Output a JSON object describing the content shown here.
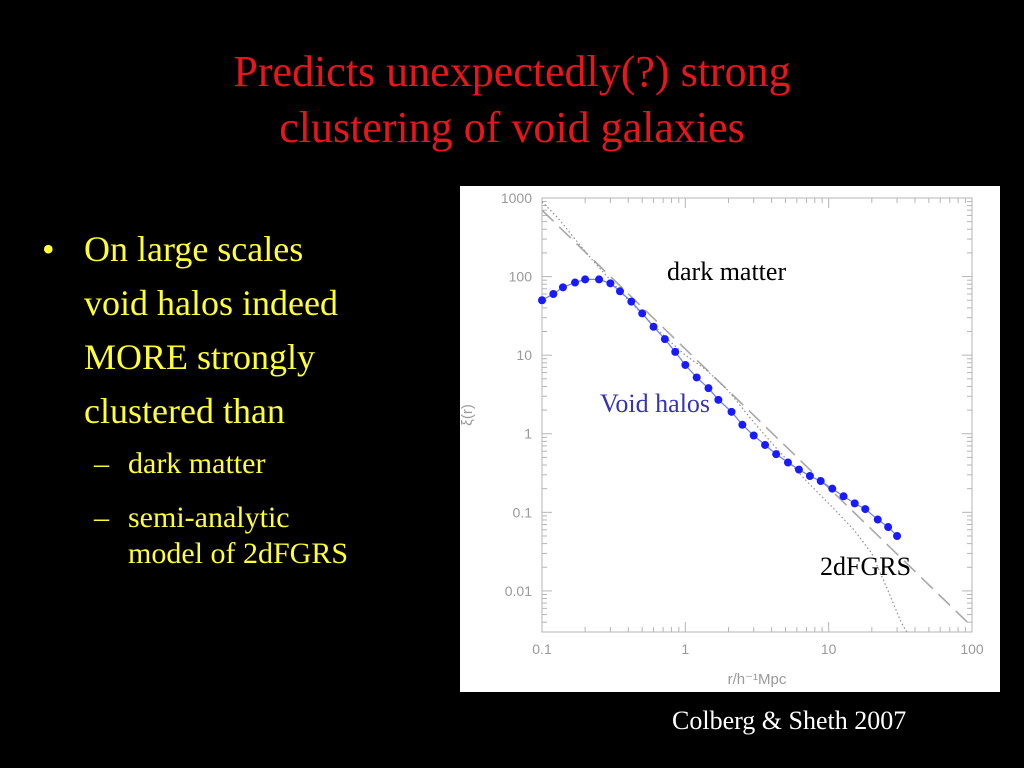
{
  "slide": {
    "title_line1": "Predicts unexpectedly(?) strong",
    "title_line2": "clustering of void galaxies",
    "bullet_symbol": "•",
    "bullet_main": [
      "On large scales",
      "void halos indeed",
      "MORE strongly",
      "clustered than"
    ],
    "sub_symbol": "–",
    "sub_1": "dark matter",
    "sub_2_lines": [
      "semi-analytic",
      "model of 2dFGRS"
    ],
    "credit": "Colberg & Sheth 2007",
    "colors": {
      "title": "#e8151b",
      "bullet": "#ffff33",
      "background": "#000000",
      "void_series": "#1a1aff"
    }
  },
  "chart_data": {
    "type": "line",
    "xscale": "log",
    "yscale": "log",
    "xlim": [
      0.1,
      100
    ],
    "ylim": [
      0.003,
      1000
    ],
    "xticks": [
      "0.1",
      "1",
      "10",
      "100"
    ],
    "xtick_values": [
      0.1,
      1,
      10,
      100
    ],
    "yticks": [
      "1000",
      "100",
      "10",
      "1",
      "0.1",
      "0.01"
    ],
    "ytick_values": [
      1000,
      100,
      10,
      1,
      0.1,
      0.01
    ],
    "xlabel": "r/h⁻¹Mpc",
    "ylabel": "ξ(r)",
    "grid": false,
    "annotations": [
      "dark matter",
      "Void halos",
      "2dFGRS"
    ],
    "series": [
      {
        "style": "dots-line",
        "color": "#1a1aff",
        "x": [
          0.1,
          0.12,
          0.14,
          0.17,
          0.2,
          0.25,
          0.3,
          0.35,
          0.42,
          0.5,
          0.6,
          0.72,
          0.85,
          1.0,
          1.2,
          1.45,
          1.7,
          2.1,
          2.5,
          3.0,
          3.6,
          4.3,
          5.2,
          6.2,
          7.4,
          8.8,
          10.6,
          12.7,
          15.2,
          18.0,
          22.0,
          26.0,
          30.0
        ],
        "y": [
          50,
          60,
          73,
          84,
          92,
          92,
          82,
          65,
          48,
          34,
          23,
          16,
          11,
          7.5,
          5.2,
          3.8,
          2.7,
          1.9,
          1.3,
          0.95,
          0.72,
          0.55,
          0.43,
          0.35,
          0.29,
          0.25,
          0.2,
          0.16,
          0.13,
          0.11,
          0.081,
          0.065,
          0.05
        ]
      },
      {
        "style": "dashed",
        "color": "#a8a8a8",
        "x": [
          0.1,
          100
        ],
        "y": [
          700,
          0.0035
        ]
      },
      {
        "style": "dotted",
        "color": "#909090",
        "x": [
          0.1,
          0.13,
          0.17,
          0.22,
          0.3,
          0.4,
          0.55,
          0.75,
          1.0,
          1.4,
          2.0,
          3.0,
          4.5,
          7.0,
          10.0,
          15.0,
          20.0,
          26.0,
          32.0,
          40.0
        ],
        "y": [
          900,
          550,
          300,
          170,
          90,
          50,
          28,
          16,
          10,
          6.5,
          3.5,
          1.4,
          0.6,
          0.25,
          0.13,
          0.06,
          0.03,
          0.01,
          0.004,
          0.002
        ]
      }
    ]
  }
}
